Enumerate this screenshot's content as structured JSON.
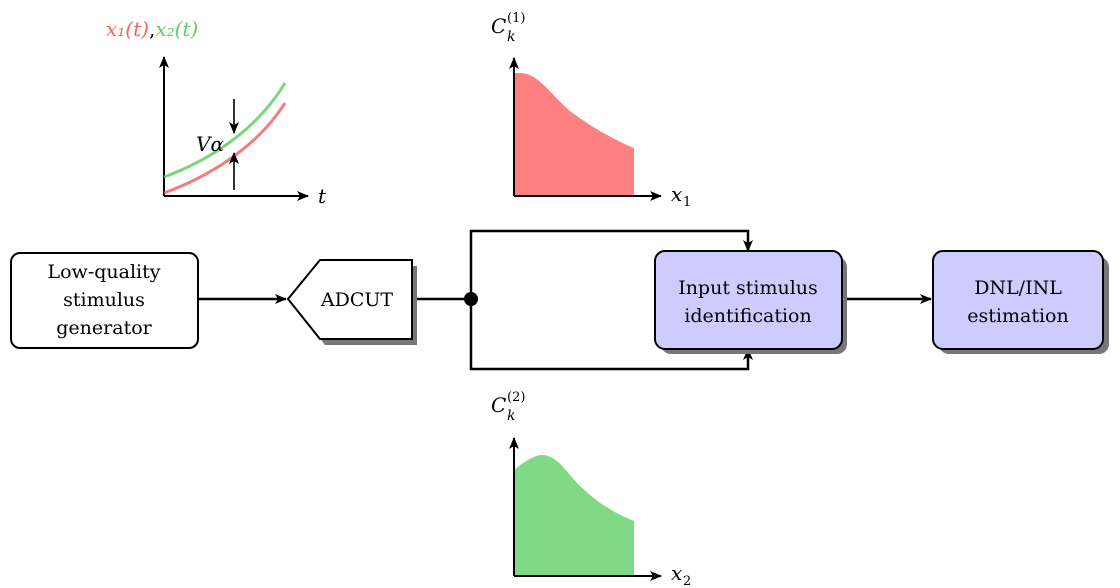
{
  "blocks": {
    "generator": {
      "lines": [
        "Low-quality",
        "stimulus",
        "generator"
      ]
    },
    "adcut": {
      "label": "ADCUT"
    },
    "identification": {
      "lines": [
        "Input stimulus",
        "identification"
      ]
    },
    "estimation": {
      "lines": [
        "DNL/INL",
        "estimation"
      ]
    }
  },
  "plot_signals": {
    "title_x1": "x₁(t)",
    "title_sep": ",",
    "title_x2": "x₂(t)",
    "x_axis": "t",
    "gap_label": "Vα",
    "colors": {
      "x1": "#ee6666",
      "x2": "#66cc66"
    }
  },
  "plot_c1": {
    "y_label": "C",
    "y_sub": "k",
    "y_sup": "(1)",
    "x_label": "x",
    "x_sub": "1",
    "fill": "#ff8080"
  },
  "plot_c2": {
    "y_label": "C",
    "y_sub": "k",
    "y_sup": "(2)",
    "x_label": "x",
    "x_sub": "2",
    "fill": "#80d985"
  },
  "colors": {
    "block_fill_plain": "#ffffff",
    "block_fill_accent": "#ccccff",
    "shadow": "#777777"
  }
}
